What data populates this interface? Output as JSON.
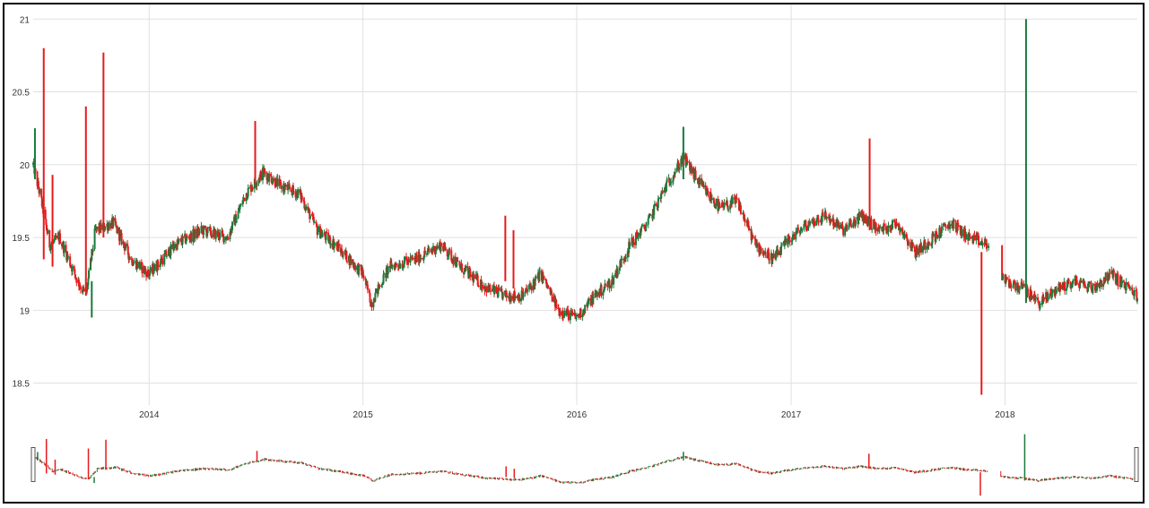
{
  "colors": {
    "up": "#1a7a3c",
    "down": "#e8191b",
    "grid": "#e0e0e0",
    "frame": "#000000",
    "handle": "#888888"
  },
  "chart_data": {
    "type": "candlestick",
    "title": "",
    "xlabel": "",
    "ylabel": "",
    "ylim": [
      18.35,
      21.1
    ],
    "xlim": [
      "2013-06-17",
      "2018-08-15"
    ],
    "grid": true,
    "y_ticks": [
      "18.5",
      "19",
      "19.5",
      "20",
      "20.5",
      "21"
    ],
    "x_ticks": [
      {
        "label": "2014",
        "date": "2014-01-01"
      },
      {
        "label": "2015",
        "date": "2015-01-01"
      },
      {
        "label": "2016",
        "date": "2016-01-01"
      },
      {
        "label": "2017",
        "date": "2017-01-01"
      },
      {
        "label": "2018",
        "date": "2018-01-01"
      }
    ],
    "navigator": true,
    "close_anchors": [
      [
        "2013-06-17",
        20.0
      ],
      [
        "2013-07-01",
        19.75
      ],
      [
        "2013-07-15",
        19.45
      ],
      [
        "2013-08-01",
        19.5
      ],
      [
        "2013-09-01",
        19.2
      ],
      [
        "2013-09-15",
        19.1
      ],
      [
        "2013-10-01",
        19.55
      ],
      [
        "2013-11-01",
        19.6
      ],
      [
        "2013-12-01",
        19.35
      ],
      [
        "2014-01-01",
        19.25
      ],
      [
        "2014-02-15",
        19.45
      ],
      [
        "2014-04-01",
        19.55
      ],
      [
        "2014-05-15",
        19.5
      ],
      [
        "2014-06-15",
        19.8
      ],
      [
        "2014-07-15",
        19.95
      ],
      [
        "2014-08-15",
        19.85
      ],
      [
        "2014-09-15",
        19.8
      ],
      [
        "2014-10-15",
        19.55
      ],
      [
        "2014-11-15",
        19.45
      ],
      [
        "2015-01-01",
        19.25
      ],
      [
        "2015-01-15",
        19.05
      ],
      [
        "2015-02-15",
        19.3
      ],
      [
        "2015-04-01",
        19.35
      ],
      [
        "2015-05-15",
        19.45
      ],
      [
        "2015-06-15",
        19.3
      ],
      [
        "2015-08-01",
        19.15
      ],
      [
        "2015-09-01",
        19.1
      ],
      [
        "2015-10-01",
        19.1
      ],
      [
        "2015-11-01",
        19.25
      ],
      [
        "2015-12-01",
        19.0
      ],
      [
        "2016-01-01",
        18.95
      ],
      [
        "2016-02-01",
        19.1
      ],
      [
        "2016-03-01",
        19.2
      ],
      [
        "2016-04-01",
        19.45
      ],
      [
        "2016-05-01",
        19.6
      ],
      [
        "2016-06-01",
        19.85
      ],
      [
        "2016-07-01",
        20.05
      ],
      [
        "2016-08-01",
        19.85
      ],
      [
        "2016-09-01",
        19.7
      ],
      [
        "2016-10-01",
        19.75
      ],
      [
        "2016-11-01",
        19.45
      ],
      [
        "2016-12-01",
        19.35
      ],
      [
        "2017-01-01",
        19.5
      ],
      [
        "2017-02-01",
        19.6
      ],
      [
        "2017-03-01",
        19.65
      ],
      [
        "2017-04-01",
        19.55
      ],
      [
        "2017-05-01",
        19.65
      ],
      [
        "2017-06-01",
        19.55
      ],
      [
        "2017-07-01",
        19.6
      ],
      [
        "2017-08-01",
        19.4
      ],
      [
        "2017-09-01",
        19.5
      ],
      [
        "2017-10-01",
        19.6
      ],
      [
        "2017-11-01",
        19.5
      ],
      [
        "2017-12-01",
        19.45
      ],
      [
        "2018-01-01",
        19.2
      ],
      [
        "2018-02-01",
        19.15
      ],
      [
        "2018-03-01",
        19.05
      ],
      [
        "2018-04-01",
        19.15
      ],
      [
        "2018-05-01",
        19.2
      ],
      [
        "2018-06-01",
        19.15
      ],
      [
        "2018-07-01",
        19.25
      ],
      [
        "2018-08-15",
        19.1
      ]
    ],
    "wicks": [
      {
        "date": "2013-06-20",
        "high": 20.25,
        "low": 19.9,
        "color": "up"
      },
      {
        "date": "2013-07-05",
        "high": 20.8,
        "low": 19.35,
        "color": "down"
      },
      {
        "date": "2013-07-20",
        "high": 19.93,
        "low": 19.3,
        "color": "down"
      },
      {
        "date": "2013-09-15",
        "high": 20.4,
        "low": 19.1,
        "color": "down"
      },
      {
        "date": "2013-09-25",
        "high": 19.2,
        "low": 18.95,
        "color": "up"
      },
      {
        "date": "2013-10-15",
        "high": 20.77,
        "low": 19.5,
        "color": "down"
      },
      {
        "date": "2014-07-01",
        "high": 20.3,
        "low": 19.9,
        "color": "down"
      },
      {
        "date": "2015-09-01",
        "high": 19.65,
        "low": 19.2,
        "color": "down"
      },
      {
        "date": "2015-09-15",
        "high": 19.55,
        "low": 19.15,
        "color": "down"
      },
      {
        "date": "2016-07-01",
        "high": 20.26,
        "low": 19.9,
        "color": "up"
      },
      {
        "date": "2017-05-15",
        "high": 20.18,
        "low": 19.55,
        "color": "down"
      },
      {
        "date": "2017-11-22",
        "high": 19.4,
        "low": 18.42,
        "color": "down"
      },
      {
        "date": "2018-02-06",
        "high": 21.0,
        "low": 19.05,
        "color": "up"
      }
    ],
    "gaps": [
      [
        "2017-12-05",
        "2017-12-26"
      ]
    ]
  }
}
